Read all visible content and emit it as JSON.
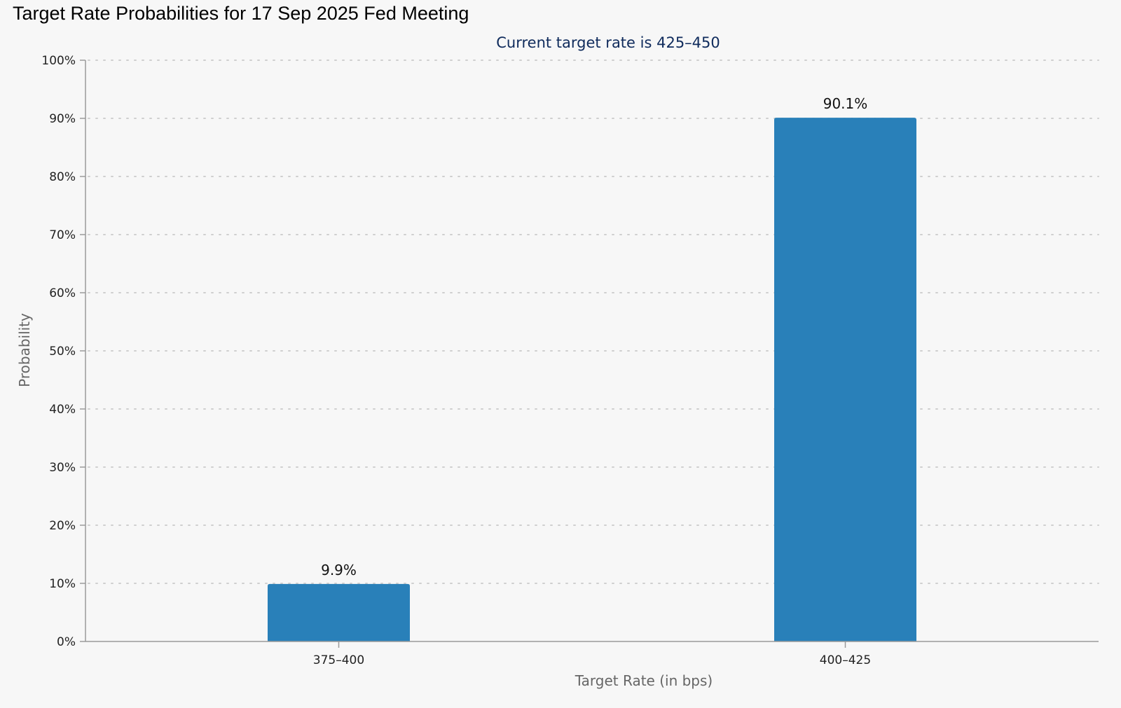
{
  "chart_data": {
    "type": "bar",
    "title": "Target Rate Probabilities for 17 Sep 2025 Fed Meeting",
    "subtitle": "Current target rate is 425–450",
    "xlabel": "Target Rate (in bps)",
    "ylabel": "Probability",
    "categories": [
      "375–400",
      "400–425"
    ],
    "values": [
      9.9,
      90.1
    ],
    "data_labels": [
      "9.9%",
      "90.1%"
    ],
    "ylim": [
      0,
      100
    ],
    "yticks": [
      0,
      10,
      20,
      30,
      40,
      50,
      60,
      70,
      80,
      90,
      100
    ],
    "ytick_labels": [
      "0%",
      "10%",
      "20%",
      "30%",
      "40%",
      "50%",
      "60%",
      "70%",
      "80%",
      "90%",
      "100%"
    ],
    "grid": true,
    "legend": "none",
    "bar_color": "#2980b9"
  }
}
